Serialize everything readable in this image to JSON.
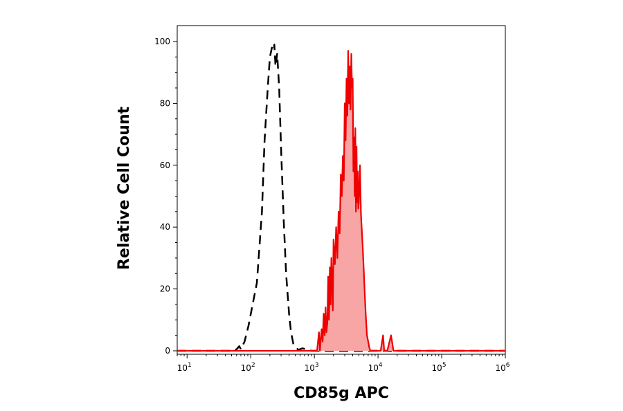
{
  "chart_data": {
    "type": "area",
    "title": "",
    "xlabel": "CD85g APC",
    "ylabel": "Relative Cell Count",
    "xscale": "log",
    "xlim": [
      7,
      1000000
    ],
    "ylim": [
      0,
      105
    ],
    "grid": false,
    "legend": "none",
    "xtick_labels": [
      {
        "value": 10,
        "base": "10",
        "exp": "1"
      },
      {
        "value": 100,
        "base": "10",
        "exp": "2"
      },
      {
        "value": 1000,
        "base": "10",
        "exp": "3"
      },
      {
        "value": 10000,
        "base": "10",
        "exp": "4"
      },
      {
        "value": 100000,
        "base": "10",
        "exp": "5"
      },
      {
        "value": 1000000,
        "base": "10",
        "exp": "6"
      }
    ],
    "ytick_labels": [
      {
        "value": 0,
        "label": "0"
      },
      {
        "value": 20,
        "label": "20"
      },
      {
        "value": 40,
        "label": "40"
      },
      {
        "value": 60,
        "label": "60"
      },
      {
        "value": 80,
        "label": "80"
      },
      {
        "value": 100,
        "label": "100"
      }
    ],
    "series": [
      {
        "style": "dashed",
        "color": "#000000",
        "fill": "none",
        "x": [
          7,
          50,
          60,
          66,
          70,
          80,
          92,
          105,
          125,
          150,
          165,
          185,
          200,
          215,
          230,
          235,
          245,
          260,
          280,
          300,
          330,
          360,
          400,
          430,
          470,
          520,
          560,
          650,
          900,
          1000000
        ],
        "y": [
          0,
          0,
          0.5,
          1.5,
          0.5,
          3,
          8,
          14,
          22,
          45,
          68,
          85,
          95,
          98,
          97,
          99,
          92,
          96,
          85,
          65,
          42,
          25,
          12,
          6,
          2,
          1,
          0.3,
          0.8,
          0,
          0
        ]
      },
      {
        "style": "solid",
        "color": "#ee0000",
        "fill": "#f7a5a5",
        "x": [
          7,
          1100,
          1180,
          1220,
          1300,
          1350,
          1400,
          1450,
          1500,
          1550,
          1600,
          1650,
          1700,
          1750,
          1800,
          1850,
          1900,
          1950,
          2000,
          2100,
          2200,
          2300,
          2400,
          2500,
          2600,
          2700,
          2800,
          2900,
          3000,
          3100,
          3200,
          3300,
          3400,
          3500,
          3600,
          3700,
          3800,
          3900,
          4000,
          4100,
          4200,
          4300,
          4400,
          4500,
          4600,
          4700,
          4800,
          4900,
          5000,
          5200,
          5400,
          5600,
          5800,
          6000,
          6200,
          6400,
          6700,
          7000,
          7300,
          7600,
          8000,
          8500,
          9000,
          9500,
          10000,
          11000,
          12000,
          12500,
          13000,
          14000,
          16000,
          17500,
          19000,
          1000000
        ],
        "y": [
          0,
          0,
          6,
          0,
          7,
          3,
          12,
          5,
          14,
          6,
          9,
          24,
          10,
          27,
          15,
          30,
          22,
          13,
          36,
          28,
          40,
          30,
          45,
          38,
          57,
          50,
          63,
          55,
          80,
          68,
          88,
          76,
          97,
          80,
          92,
          78,
          96,
          85,
          88,
          58,
          69,
          50,
          72,
          45,
          66,
          48,
          58,
          46,
          48,
          60,
          44,
          38,
          32,
          25,
          18,
          12,
          5,
          3,
          1,
          0,
          0,
          0,
          0,
          0,
          0,
          0,
          5,
          0,
          0,
          0,
          5,
          0,
          0,
          0
        ]
      }
    ]
  }
}
